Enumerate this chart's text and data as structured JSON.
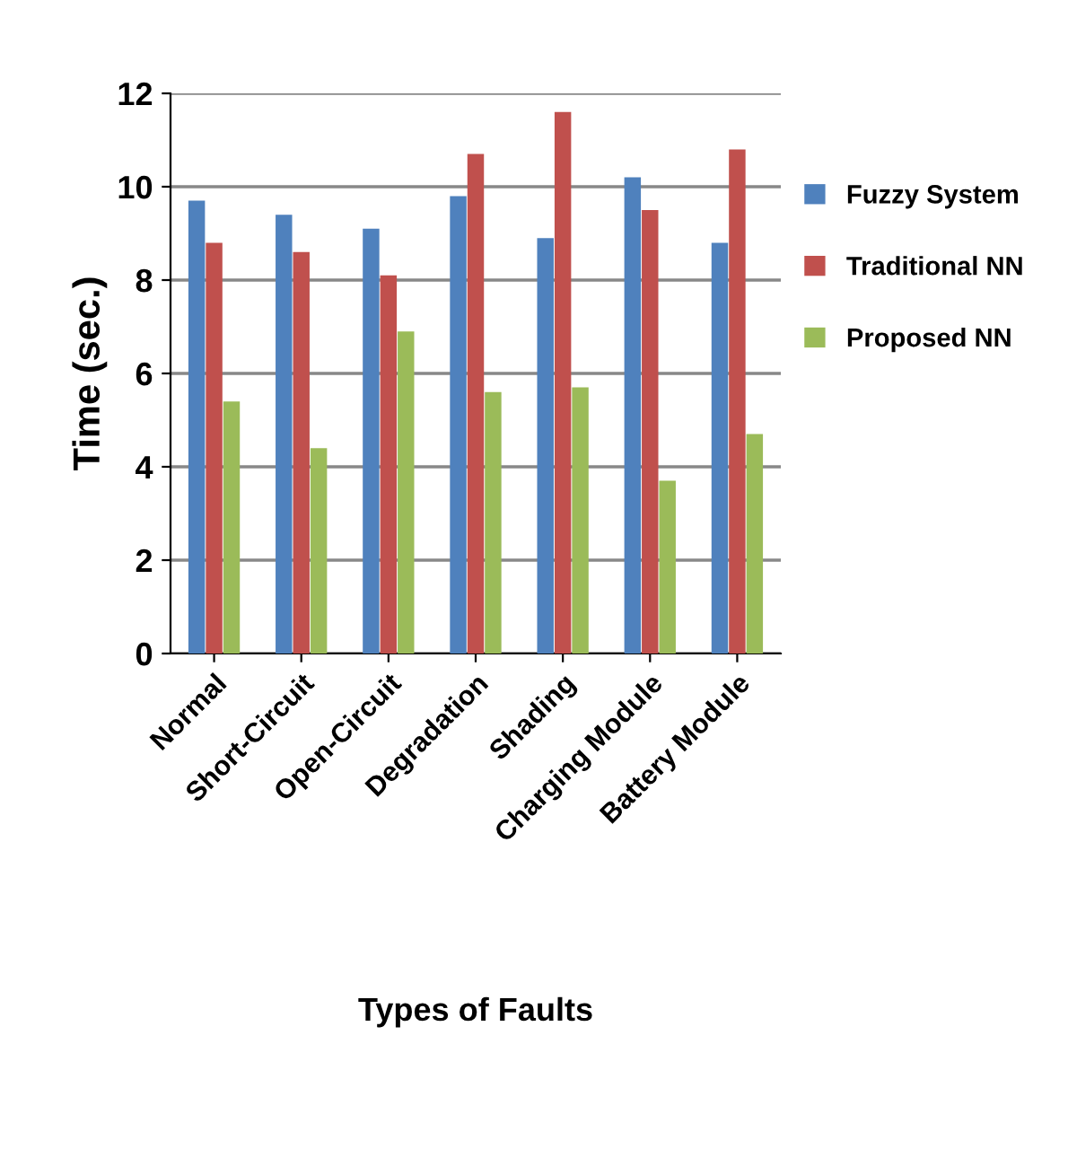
{
  "chart_data": {
    "type": "bar",
    "xlabel": "Types of Faults",
    "ylabel": "Time (sec.)",
    "categories": [
      "Normal",
      "Short-Circuit",
      "Open-Circuit",
      "Degradation",
      "Shading",
      "Charging Module",
      "Battery Module"
    ],
    "series": [
      {
        "name": "Fuzzy System",
        "color": "#4f81bd",
        "values": [
          9.7,
          9.4,
          9.1,
          9.8,
          8.9,
          10.2,
          8.8
        ]
      },
      {
        "name": "Traditional NN",
        "color": "#c0504d",
        "values": [
          8.8,
          8.6,
          8.1,
          10.7,
          11.6,
          9.5,
          10.8
        ]
      },
      {
        "name": "Proposed NN",
        "color": "#9bbb59",
        "values": [
          5.4,
          4.4,
          6.9,
          5.6,
          5.7,
          3.7,
          4.7
        ]
      }
    ],
    "ylim": [
      0,
      12
    ],
    "yticks": [
      0,
      2,
      4,
      6,
      8,
      10,
      12
    ],
    "grid": "y",
    "legend": "right"
  }
}
